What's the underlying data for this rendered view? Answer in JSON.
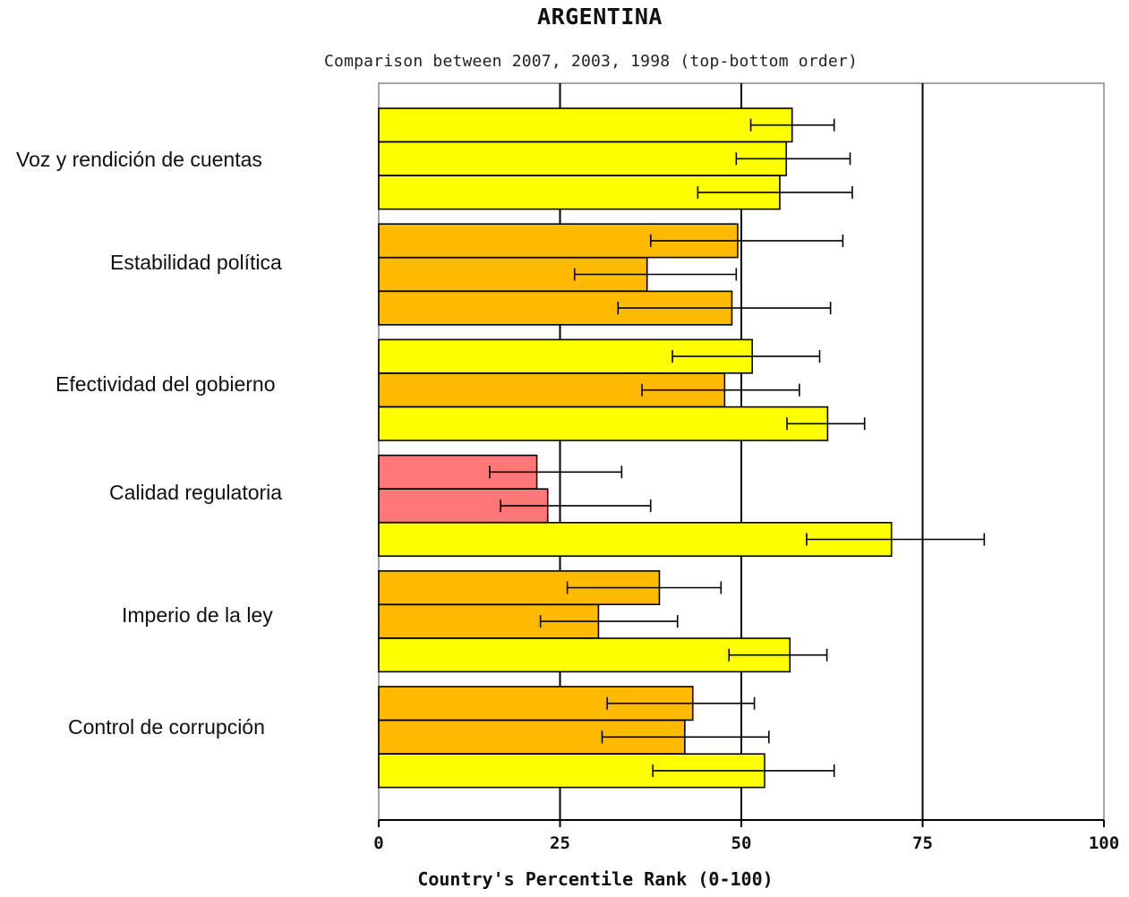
{
  "chart_data": {
    "type": "bar",
    "orientation": "horizontal",
    "title": "ARGENTINA",
    "subtitle": "Comparison between 2007, 2003, 1998 (top-bottom order)",
    "xlabel": "Country's Percentile Rank (0-100)",
    "xlim": [
      0,
      100
    ],
    "xticks": [
      0,
      25,
      50,
      75,
      100
    ],
    "grid": "vertical at ticks",
    "legend": "none",
    "categories": [
      "Voz y rendición de cuentas",
      "Estabilidad política",
      "Efectividad del gobierno",
      "Calidad regulatoria",
      "Imperio de la ley",
      "Control de corrupción"
    ],
    "series": [
      {
        "values": [
          57.0,
          49.5,
          51.5,
          21.8,
          38.7,
          43.3
        ],
        "error_low": [
          51.3,
          37.5,
          40.5,
          15.3,
          26.0,
          31.5
        ],
        "error_high": [
          62.8,
          64.0,
          60.8,
          33.5,
          47.2,
          51.8
        ],
        "colors": [
          "#ffff00",
          "#ffbb00",
          "#ffff00",
          "#ff7777",
          "#ffbb00",
          "#ffbb00"
        ]
      },
      {
        "values": [
          56.2,
          37.0,
          47.7,
          23.3,
          30.3,
          42.2
        ],
        "error_low": [
          49.3,
          27.0,
          36.3,
          16.8,
          22.3,
          30.8
        ],
        "error_high": [
          65.0,
          49.3,
          58.0,
          37.5,
          41.2,
          53.8
        ],
        "colors": [
          "#ffff00",
          "#ffbb00",
          "#ffbb00",
          "#ff7777",
          "#ffbb00",
          "#ffbb00"
        ]
      },
      {
        "values": [
          55.3,
          48.7,
          61.9,
          70.7,
          56.7,
          53.2
        ],
        "error_low": [
          44.0,
          33.0,
          56.3,
          59.0,
          48.3,
          37.8
        ],
        "error_high": [
          65.3,
          62.3,
          67.0,
          83.5,
          61.8,
          62.8
        ],
        "colors": [
          "#ffff00",
          "#ffbb00",
          "#ffff00",
          "#ffff00",
          "#ffff00",
          "#ffff00"
        ]
      }
    ]
  }
}
